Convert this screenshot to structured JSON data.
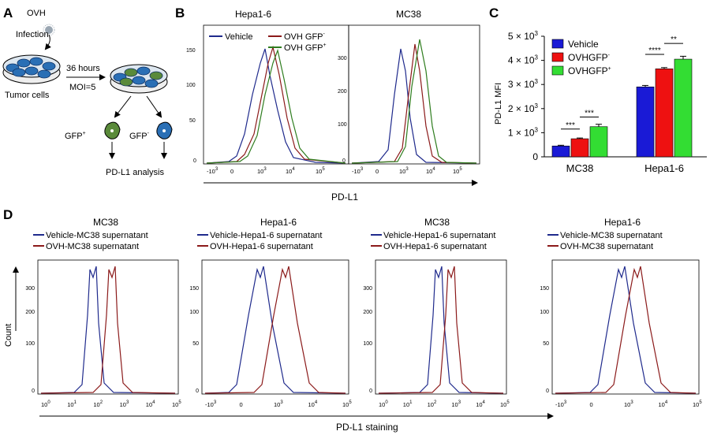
{
  "panels": {
    "A": {
      "label": "A",
      "virus": "OVH",
      "infection": "Infection",
      "duration": "36 hours",
      "moi": "MOI=5",
      "cells": "Tumor cells",
      "gfp_pos": "GFP",
      "gfp_neg": "GFP",
      "sup_pos": "+",
      "sup_neg": "-",
      "analysis": "PD-L1 analysis"
    },
    "B": {
      "label": "B",
      "titles": [
        "Hepa1-6",
        "MC38"
      ],
      "legend": [
        {
          "name": "Vehicle",
          "sup": "",
          "color": "#1f2a8c"
        },
        {
          "name": "OVH GFP",
          "sup": "-",
          "color": "#8b1a1a"
        },
        {
          "name": "OVH GFP",
          "sup": "+",
          "color": "#2e7d1e"
        }
      ],
      "xaxis_label": "PD-L1",
      "yticks_left": [
        "150",
        "100",
        "50",
        "0"
      ],
      "yticks_right": [
        "300",
        "200",
        "100",
        "0"
      ]
    },
    "C": {
      "label": "C",
      "ylabel": "PD-L1 MFI",
      "legend": [
        {
          "name": "Vehicle",
          "sup": "",
          "color": "#1a1ad6"
        },
        {
          "name": "OVHGFP",
          "sup": "-",
          "color": "#ee1111"
        },
        {
          "name": "OVHGFP",
          "sup": "+",
          "color": "#33dd33"
        }
      ],
      "significance": [
        "***",
        "***",
        "****",
        "**"
      ]
    },
    "D": {
      "label": "D",
      "titles": [
        "MC38",
        "Hepa1-6",
        "MC38",
        "Hepa1-6"
      ],
      "legends": [
        [
          "Vehicle-MC38 supernatant",
          "OVH-MC38 supernatant"
        ],
        [
          "Vehicle-Hepa1-6 supernatant",
          "OVH-Hepa1-6 supernatant"
        ],
        [
          "Vehicle-Hepa1-6 supernatant",
          "OVH-Hepa1-6 supernatant"
        ],
        [
          "Vehicle-MC38 supernatant",
          "OVH-MC38 supernatant"
        ]
      ],
      "colors": [
        "#1f2a8c",
        "#8b1a1a"
      ],
      "ylabel": "Count",
      "xaxis_label": "PD-L1 staining",
      "yticks": [
        [
          "300",
          "200",
          "100",
          "0"
        ],
        [
          "150",
          "100",
          "50",
          "0"
        ],
        [
          "300",
          "200",
          "100",
          "0"
        ],
        [
          "150",
          "100",
          "50",
          "0"
        ]
      ]
    }
  },
  "chart_data": {
    "type": "bar",
    "title": "",
    "ylabel": "PD-L1 MFI",
    "categories": [
      "MC38",
      "Hepa1-6"
    ],
    "series": [
      {
        "name": "Vehicle",
        "values": [
          450,
          2900
        ],
        "errors": [
          30,
          60
        ]
      },
      {
        "name": "OVHGFP-",
        "values": [
          750,
          3650
        ],
        "errors": [
          30,
          50
        ]
      },
      {
        "name": "OVHGFP+",
        "values": [
          1250,
          4050
        ],
        "errors": [
          100,
          120
        ]
      }
    ],
    "ylim": [
      0,
      5000
    ],
    "yticks": [
      0,
      1000,
      2000,
      3000,
      4000,
      5000
    ],
    "ytick_labels": [
      {
        "base": "0",
        "exp": ""
      },
      {
        "base": "1 × 10",
        "exp": "3"
      },
      {
        "base": "2 × 10",
        "exp": "3"
      },
      {
        "base": "3 × 10",
        "exp": "3"
      },
      {
        "base": "4 × 10",
        "exp": "3"
      },
      {
        "base": "5 × 10",
        "exp": "3"
      }
    ]
  }
}
